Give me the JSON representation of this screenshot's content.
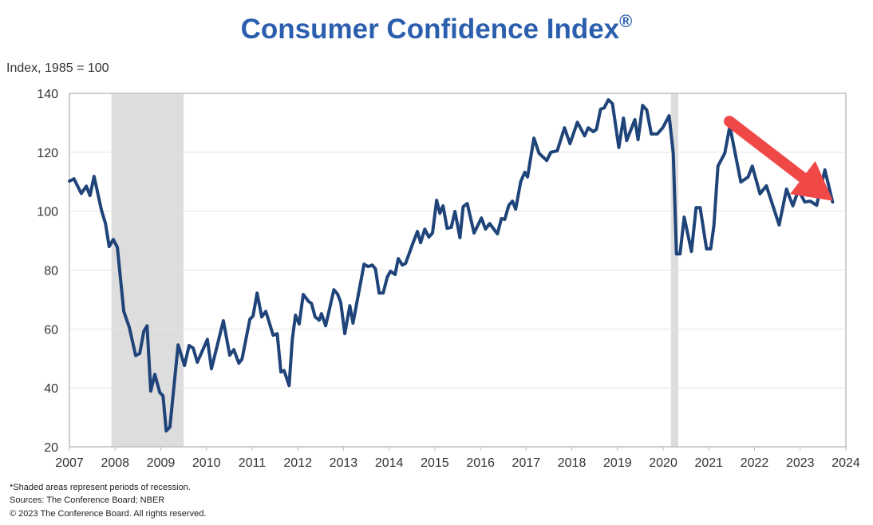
{
  "chart_data": {
    "type": "line",
    "title": "Consumer Confidence Index",
    "title_mark": "®",
    "ylabel": "Index, 1985 = 100",
    "xlabel": "",
    "xlim": [
      2007,
      2024
    ],
    "ylim": [
      20,
      140
    ],
    "x_ticks": [
      "2007",
      "2008",
      "2009",
      "2010",
      "2011",
      "2012",
      "2013",
      "2014",
      "2015",
      "2016",
      "2017",
      "2018",
      "2019",
      "2020",
      "2021",
      "2022",
      "2023",
      "2024"
    ],
    "y_ticks": [
      "20",
      "40",
      "60",
      "80",
      "100",
      "120",
      "140"
    ],
    "grid": "horizontal",
    "line_color": "#1F4479",
    "recessions": [
      [
        2007.92,
        2009.5
      ],
      [
        2020.17,
        2020.33
      ]
    ],
    "recession_color": "#DDDDDD",
    "annotation_arrow": {
      "from": [
        2021.45,
        130.5
      ],
      "to": [
        2023.72,
        103.5
      ],
      "color": "#F04747"
    },
    "series": [
      {
        "x": [
          2007.0,
          2007.1,
          2007.26,
          2007.37,
          2007.45,
          2007.54,
          2007.7,
          2007.79,
          2007.87,
          2007.96,
          2008.05,
          2008.19,
          2008.31,
          2008.45,
          2008.54,
          2008.63,
          2008.7,
          2008.78,
          2008.87,
          2008.98,
          2009.05,
          2009.12,
          2009.2,
          2009.38,
          2009.52,
          2009.62,
          2009.71,
          2009.8,
          2010.02,
          2010.11,
          2010.37,
          2010.51,
          2010.6,
          2010.71,
          2010.78,
          2010.95,
          2011.02,
          2011.11,
          2011.21,
          2011.3,
          2011.46,
          2011.55,
          2011.63,
          2011.7,
          2011.81,
          2011.88,
          2011.95,
          2012.03,
          2012.12,
          2012.24,
          2012.3,
          2012.38,
          2012.47,
          2012.52,
          2012.61,
          2012.79,
          2012.87,
          2012.94,
          2013.03,
          2013.14,
          2013.21,
          2013.29,
          2013.45,
          2013.54,
          2013.63,
          2013.7,
          2013.78,
          2013.87,
          2013.96,
          2014.03,
          2014.13,
          2014.2,
          2014.29,
          2014.36,
          2014.52,
          2014.62,
          2014.69,
          2014.78,
          2014.87,
          2014.95,
          2015.04,
          2015.11,
          2015.18,
          2015.27,
          2015.36,
          2015.44,
          2015.55,
          2015.62,
          2015.71,
          2015.86,
          2016.02,
          2016.11,
          2016.2,
          2016.37,
          2016.46,
          2016.53,
          2016.62,
          2016.7,
          2016.77,
          2016.88,
          2016.97,
          2017.03,
          2017.17,
          2017.28,
          2017.45,
          2017.54,
          2017.68,
          2017.84,
          2017.96,
          2018.12,
          2018.28,
          2018.36,
          2018.47,
          2018.54,
          2018.63,
          2018.71,
          2018.8,
          2018.89,
          2019.03,
          2019.13,
          2019.2,
          2019.38,
          2019.45,
          2019.55,
          2019.64,
          2019.74,
          2019.87,
          2019.99,
          2020.13,
          2020.22,
          2020.29,
          2020.37,
          2020.46,
          2020.62,
          2020.72,
          2020.81,
          2020.95,
          2021.04,
          2021.11,
          2021.2,
          2021.35,
          2021.46,
          2021.56,
          2021.7,
          2021.86,
          2021.95,
          2022.12,
          2022.26,
          2022.54,
          2022.7,
          2022.84,
          2022.96,
          2023.1,
          2023.22,
          2023.36,
          2023.54,
          2023.71
        ],
        "y": [
          110.2,
          111.0,
          106.0,
          108.5,
          105.3,
          111.8,
          100.4,
          95.8,
          88.0,
          90.4,
          87.7,
          66.0,
          60.6,
          51.0,
          51.7,
          59.3,
          61.1,
          38.9,
          44.6,
          38.4,
          37.3,
          25.4,
          26.7,
          54.6,
          47.6,
          54.4,
          53.5,
          48.7,
          56.5,
          46.5,
          62.8,
          51.1,
          53.0,
          48.4,
          49.8,
          63.3,
          64.4,
          72.2,
          64.1,
          66.0,
          57.9,
          58.4,
          45.4,
          45.9,
          40.8,
          56.5,
          64.7,
          61.7,
          71.7,
          69.3,
          68.7,
          64.1,
          63.0,
          65.2,
          61.1,
          73.3,
          71.9,
          69.0,
          58.4,
          67.9,
          62.0,
          68.7,
          82.0,
          81.2,
          81.7,
          80.4,
          72.2,
          72.2,
          77.7,
          79.6,
          78.5,
          83.9,
          81.7,
          82.3,
          89.1,
          93.1,
          89.3,
          93.9,
          91.2,
          92.6,
          103.7,
          99.3,
          101.8,
          94.2,
          94.5,
          99.9,
          91.0,
          101.5,
          102.6,
          92.6,
          97.7,
          93.9,
          95.8,
          92.3,
          97.5,
          97.2,
          102.0,
          103.4,
          100.7,
          110.0,
          113.2,
          111.6,
          124.8,
          119.7,
          117.2,
          120.0,
          120.5,
          128.3,
          122.9,
          130.2,
          125.6,
          128.3,
          127.0,
          127.8,
          134.6,
          135.1,
          137.8,
          136.5,
          121.6,
          131.6,
          124.0,
          131.1,
          124.3,
          135.9,
          134.3,
          126.2,
          126.2,
          128.3,
          132.4,
          119.7,
          85.5,
          85.5,
          98.0,
          86.3,
          101.2,
          101.2,
          87.2,
          87.2,
          95.0,
          115.3,
          119.7,
          128.9,
          121.0,
          109.9,
          111.6,
          115.3,
          105.9,
          108.6,
          95.3,
          107.5,
          101.8,
          107.2,
          103.1,
          103.4,
          102.0,
          114.0,
          103.1
        ]
      }
    ]
  },
  "footnotes": {
    "line1": "*Shaded areas represent periods of recession.",
    "line2": "Sources: The Conference Board; NBER",
    "line3": "© 2023 The Conference Board. All rights reserved."
  }
}
